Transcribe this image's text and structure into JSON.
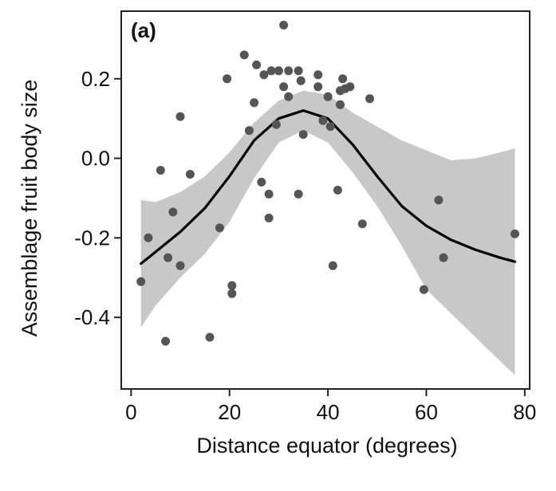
{
  "chart_data": {
    "type": "scatter",
    "panel_label": "(a)",
    "xlabel": "Distance equator (degrees)",
    "ylabel": "Assemblage fruit body size",
    "xlim": [
      -2,
      81
    ],
    "ylim": [
      -0.58,
      0.37
    ],
    "xticks": [
      0,
      20,
      40,
      60,
      80
    ],
    "yticks": [
      0.2,
      0.0,
      -0.2,
      -0.4
    ],
    "ytick_labels": [
      "0.2",
      "0.0",
      "-0.2",
      "-0.4"
    ],
    "grid": false,
    "legend": "none",
    "colors": {
      "points": "#555555",
      "curve": "#000000",
      "band": "#c8c8c8",
      "frame": "#222222"
    },
    "points": [
      {
        "x": 2,
        "y": -0.31
      },
      {
        "x": 3.5,
        "y": -0.2
      },
      {
        "x": 6,
        "y": -0.03
      },
      {
        "x": 7,
        "y": -0.46
      },
      {
        "x": 7.5,
        "y": -0.25
      },
      {
        "x": 8.5,
        "y": -0.135
      },
      {
        "x": 10,
        "y": 0.105
      },
      {
        "x": 10,
        "y": -0.27
      },
      {
        "x": 12,
        "y": -0.04
      },
      {
        "x": 16,
        "y": -0.45
      },
      {
        "x": 18,
        "y": -0.175
      },
      {
        "x": 19.5,
        "y": 0.2
      },
      {
        "x": 20.5,
        "y": -0.32
      },
      {
        "x": 20.5,
        "y": -0.34
      },
      {
        "x": 23,
        "y": 0.26
      },
      {
        "x": 24,
        "y": 0.07
      },
      {
        "x": 25,
        "y": 0.14
      },
      {
        "x": 25.5,
        "y": 0.235
      },
      {
        "x": 26.5,
        "y": -0.06
      },
      {
        "x": 27,
        "y": 0.21
      },
      {
        "x": 28,
        "y": -0.09
      },
      {
        "x": 28,
        "y": -0.15
      },
      {
        "x": 28.5,
        "y": 0.22
      },
      {
        "x": 29.5,
        "y": 0.085
      },
      {
        "x": 30,
        "y": 0.22
      },
      {
        "x": 31,
        "y": 0.335
      },
      {
        "x": 31,
        "y": 0.18
      },
      {
        "x": 32,
        "y": 0.22
      },
      {
        "x": 32,
        "y": 0.155
      },
      {
        "x": 34,
        "y": 0.22
      },
      {
        "x": 34,
        "y": -0.09
      },
      {
        "x": 34.5,
        "y": 0.195
      },
      {
        "x": 35,
        "y": 0.06
      },
      {
        "x": 38,
        "y": 0.21
      },
      {
        "x": 38,
        "y": 0.18
      },
      {
        "x": 39,
        "y": 0.095
      },
      {
        "x": 40,
        "y": 0.155
      },
      {
        "x": 40.5,
        "y": 0.08
      },
      {
        "x": 41,
        "y": -0.27
      },
      {
        "x": 42,
        "y": -0.08
      },
      {
        "x": 42.5,
        "y": 0.135
      },
      {
        "x": 42.5,
        "y": 0.17
      },
      {
        "x": 43,
        "y": 0.2
      },
      {
        "x": 43.5,
        "y": 0.175
      },
      {
        "x": 44.5,
        "y": 0.18
      },
      {
        "x": 47,
        "y": -0.165
      },
      {
        "x": 48.5,
        "y": 0.15
      },
      {
        "x": 59.5,
        "y": -0.33
      },
      {
        "x": 62.5,
        "y": -0.105
      },
      {
        "x": 63.5,
        "y": -0.25
      },
      {
        "x": 78,
        "y": -0.19
      }
    ],
    "curve": {
      "x": [
        2,
        5,
        10,
        15,
        20,
        25,
        30,
        35,
        40,
        45,
        50,
        55,
        60,
        65,
        70,
        75,
        78
      ],
      "y": [
        -0.265,
        -0.235,
        -0.185,
        -0.125,
        -0.045,
        0.045,
        0.1,
        0.12,
        0.1,
        0.035,
        -0.045,
        -0.12,
        -0.17,
        -0.205,
        -0.23,
        -0.25,
        -0.26
      ]
    },
    "band": {
      "x": [
        2,
        5,
        10,
        15,
        20,
        25,
        30,
        35,
        40,
        45,
        50,
        55,
        60,
        65,
        70,
        75,
        78
      ],
      "upper": [
        -0.105,
        -0.11,
        -0.085,
        -0.045,
        0.015,
        0.09,
        0.145,
        0.17,
        0.16,
        0.115,
        0.08,
        0.045,
        0.02,
        -0.005,
        0.0,
        0.015,
        0.025
      ],
      "lower": [
        -0.425,
        -0.37,
        -0.3,
        -0.24,
        -0.16,
        -0.05,
        0.04,
        0.07,
        0.04,
        -0.035,
        -0.12,
        -0.22,
        -0.33,
        -0.39,
        -0.45,
        -0.51,
        -0.545
      ]
    }
  }
}
